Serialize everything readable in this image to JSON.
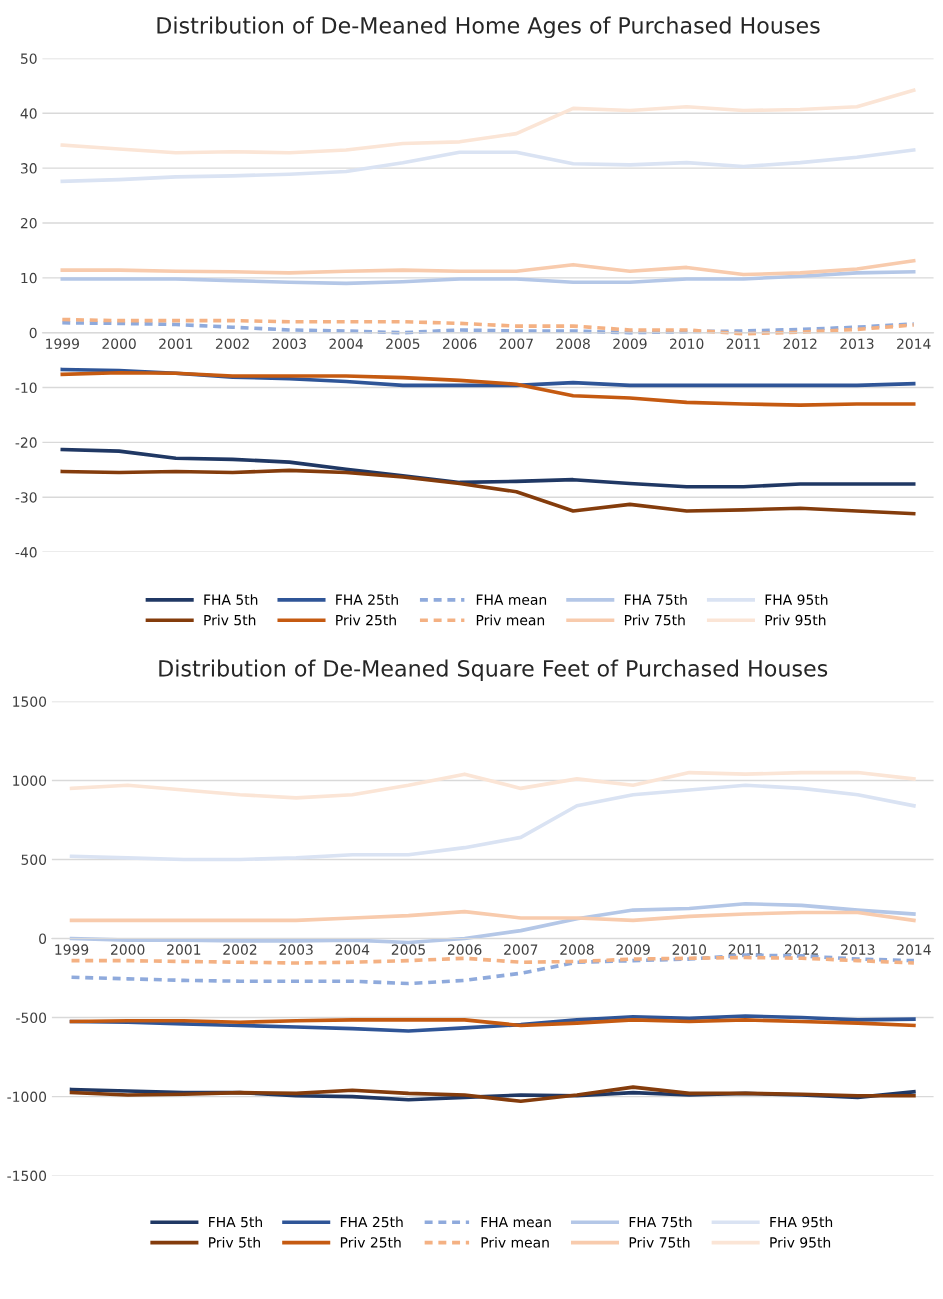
{
  "chart_data": [
    {
      "type": "line",
      "title": "Distribution of De-Meaned Home Ages of Purchased Houses",
      "categories": [
        "1999",
        "2000",
        "2001",
        "2002",
        "2003",
        "2004",
        "2005",
        "2006",
        "2007",
        "2008",
        "2009",
        "2010",
        "2011",
        "2012",
        "2013",
        "2014"
      ],
      "ylim": [
        -40,
        50
      ],
      "yticks": [
        -40,
        -30,
        -20,
        -10,
        0,
        10,
        20,
        30,
        40,
        50
      ],
      "grid": "y",
      "legend": "bottom",
      "marker": "none",
      "line_style": "solid",
      "series": [
        {
          "name": "FHA 5th",
          "color": "#203864",
          "values": [
            -21.3,
            -21.6,
            -22.9,
            -23.1,
            -23.6,
            -24.9,
            -26.1,
            -27.3,
            -27.1,
            -26.8,
            -27.5,
            -28.1,
            -28.1,
            -27.6,
            -27.6,
            -27.6
          ]
        },
        {
          "name": "FHA 25th",
          "color": "#2f5597",
          "values": [
            -6.7,
            -6.9,
            -7.4,
            -8.1,
            -8.4,
            -8.9,
            -9.6,
            -9.6,
            -9.6,
            -9.1,
            -9.6,
            -9.6,
            -9.6,
            -9.6,
            -9.6,
            -9.3
          ]
        },
        {
          "name": "FHA mean",
          "color": "#8faadc",
          "line_style": "dashed",
          "values": [
            1.8,
            1.7,
            1.5,
            1.0,
            0.5,
            0.3,
            0.0,
            0.5,
            0.3,
            0.3,
            0.0,
            0.2,
            0.3,
            0.6,
            1.0,
            1.6
          ]
        },
        {
          "name": "FHA 75th",
          "color": "#b4c7e7",
          "values": [
            9.8,
            9.8,
            9.8,
            9.5,
            9.2,
            9.0,
            9.3,
            9.8,
            9.8,
            9.2,
            9.2,
            9.8,
            9.8,
            10.3,
            10.9,
            11.1
          ]
        },
        {
          "name": "FHA 95th",
          "color": "#dae3f3",
          "values": [
            27.6,
            27.9,
            28.4,
            28.6,
            28.9,
            29.4,
            31.0,
            32.9,
            32.9,
            30.8,
            30.6,
            31.0,
            30.3,
            31.0,
            32.0,
            33.3
          ]
        },
        {
          "name": "Priv 5th",
          "color": "#843c0c",
          "values": [
            -25.3,
            -25.5,
            -25.3,
            -25.5,
            -25.1,
            -25.5,
            -26.3,
            -27.5,
            -29.0,
            -32.5,
            -31.3,
            -32.5,
            -32.3,
            -32.0,
            -32.5,
            -33.0
          ]
        },
        {
          "name": "Priv 25th",
          "color": "#c55a11",
          "values": [
            -7.6,
            -7.3,
            -7.4,
            -7.9,
            -7.9,
            -7.9,
            -8.2,
            -8.7,
            -9.4,
            -11.5,
            -11.9,
            -12.7,
            -13.0,
            -13.2,
            -13.0,
            -13.0
          ]
        },
        {
          "name": "Priv mean",
          "color": "#f4b183",
          "line_style": "dashed",
          "values": [
            2.4,
            2.2,
            2.2,
            2.2,
            2.0,
            2.0,
            2.0,
            1.7,
            1.2,
            1.2,
            0.5,
            0.5,
            -0.2,
            0.1,
            0.6,
            1.4
          ]
        },
        {
          "name": "Priv 75th",
          "color": "#f8cbad",
          "values": [
            11.4,
            11.4,
            11.2,
            11.1,
            10.9,
            11.2,
            11.4,
            11.2,
            11.2,
            12.4,
            11.2,
            11.9,
            10.6,
            10.9,
            11.6,
            13.1
          ]
        },
        {
          "name": "Priv 95th",
          "color": "#fbe5d6",
          "values": [
            34.2,
            33.5,
            32.8,
            33.0,
            32.8,
            33.3,
            34.5,
            34.8,
            36.3,
            40.9,
            40.5,
            41.2,
            40.5,
            40.7,
            41.2,
            44.2
          ]
        }
      ]
    },
    {
      "type": "line",
      "title": "Distribution of De-Meaned Square Feet of Purchased Houses",
      "categories": [
        "1999",
        "2000",
        "2001",
        "2002",
        "2003",
        "2004",
        "2005",
        "2006",
        "2007",
        "2008",
        "2009",
        "2010",
        "2011",
        "2012",
        "2013",
        "2014"
      ],
      "ylim": [
        -1500,
        1500
      ],
      "yticks": [
        -1500,
        -1000,
        -500,
        0,
        500,
        1000,
        1500
      ],
      "grid": "y",
      "legend": "bottom",
      "marker": "none",
      "line_style": "solid",
      "series": [
        {
          "name": "FHA 5th",
          "color": "#203864",
          "values": [
            -955,
            -965,
            -975,
            -975,
            -995,
            -1000,
            -1020,
            -1005,
            -990,
            -995,
            -975,
            -990,
            -980,
            -990,
            -1005,
            -970
          ]
        },
        {
          "name": "FHA 25th",
          "color": "#2f5597",
          "values": [
            -525,
            -530,
            -540,
            -550,
            -560,
            -570,
            -585,
            -565,
            -545,
            -515,
            -495,
            -505,
            -490,
            -500,
            -515,
            -510
          ]
        },
        {
          "name": "FHA mean",
          "color": "#8faadc",
          "line_style": "dashed",
          "values": [
            -245,
            -255,
            -265,
            -270,
            -270,
            -270,
            -285,
            -265,
            -220,
            -150,
            -140,
            -130,
            -105,
            -110,
            -130,
            -140
          ]
        },
        {
          "name": "FHA 75th",
          "color": "#b4c7e7",
          "values": [
            0,
            -10,
            -10,
            -15,
            -15,
            -10,
            -25,
            0,
            50,
            125,
            180,
            190,
            220,
            210,
            180,
            155
          ]
        },
        {
          "name": "FHA 95th",
          "color": "#dae3f3",
          "values": [
            520,
            510,
            500,
            500,
            510,
            530,
            530,
            575,
            640,
            840,
            910,
            940,
            970,
            950,
            910,
            840
          ]
        },
        {
          "name": "Priv 5th",
          "color": "#843c0c",
          "values": [
            -975,
            -990,
            -985,
            -975,
            -980,
            -960,
            -980,
            -990,
            -1030,
            -990,
            -940,
            -980,
            -980,
            -985,
            -995,
            -995
          ]
        },
        {
          "name": "Priv 25th",
          "color": "#c55a11",
          "values": [
            -525,
            -520,
            -520,
            -530,
            -520,
            -515,
            -515,
            -515,
            -550,
            -535,
            -515,
            -525,
            -515,
            -525,
            -535,
            -550
          ]
        },
        {
          "name": "Priv mean",
          "color": "#f4b183",
          "line_style": "dashed",
          "values": [
            -140,
            -140,
            -145,
            -150,
            -155,
            -150,
            -140,
            -125,
            -150,
            -145,
            -130,
            -125,
            -120,
            -125,
            -140,
            -155
          ]
        },
        {
          "name": "Priv 75th",
          "color": "#f8cbad",
          "values": [
            115,
            115,
            115,
            115,
            115,
            130,
            145,
            170,
            130,
            130,
            115,
            140,
            155,
            165,
            165,
            115
          ]
        },
        {
          "name": "Priv 95th",
          "color": "#fbe5d6",
          "values": [
            950,
            970,
            940,
            910,
            890,
            910,
            970,
            1040,
            950,
            1010,
            970,
            1050,
            1040,
            1050,
            1050,
            1010
          ]
        }
      ]
    }
  ]
}
